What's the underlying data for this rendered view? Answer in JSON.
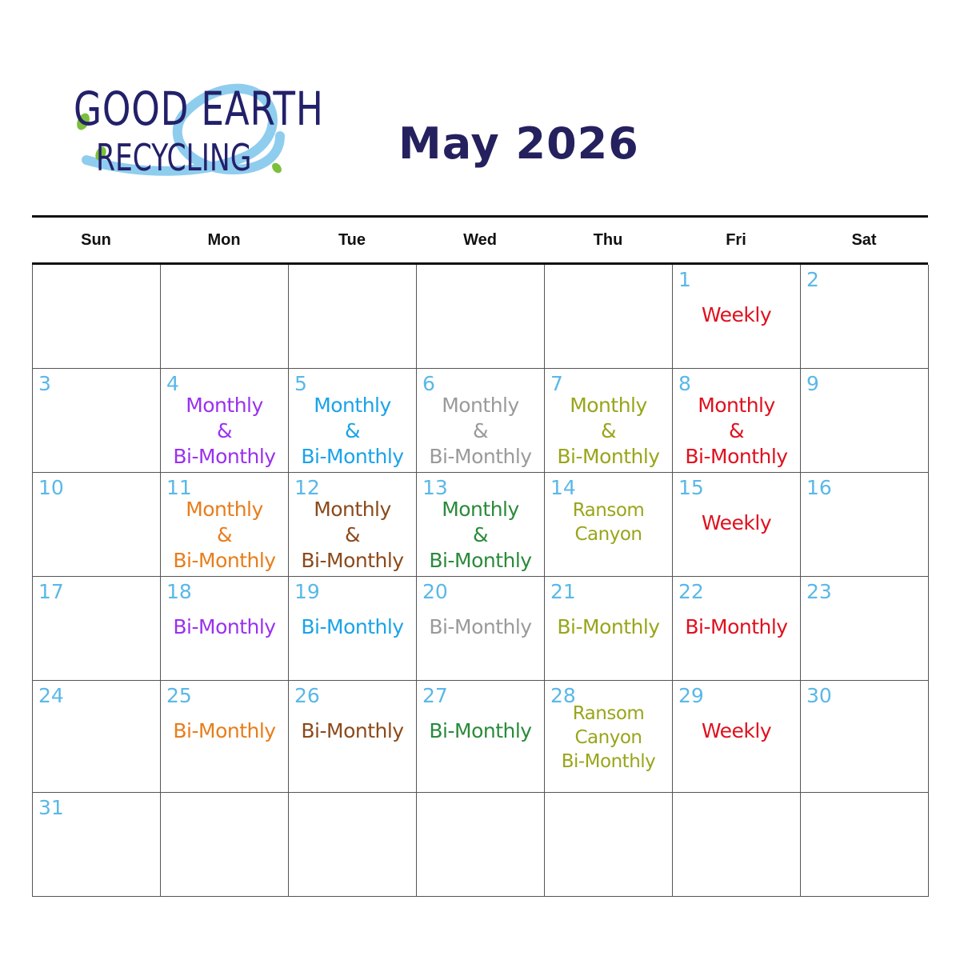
{
  "logo": {
    "line1": "GOOD EARTH",
    "line2": "RECYCLING"
  },
  "title": "May 2026",
  "days": [
    "Sun",
    "Mon",
    "Tue",
    "Wed",
    "Thu",
    "Fri",
    "Sat"
  ],
  "colors": {
    "day_number": "#5ab8e8",
    "purple": "#9b30f0",
    "blue": "#1aa3e8",
    "gray": "#9a9a9a",
    "olive": "#9aa51a",
    "red": "#e0101e",
    "orange": "#e87d1a",
    "brown": "#8b4a1a",
    "green": "#2a8a3a"
  },
  "weeks": [
    [
      {
        "day": ""
      },
      {
        "day": ""
      },
      {
        "day": ""
      },
      {
        "day": ""
      },
      {
        "day": ""
      },
      {
        "day": "1",
        "lines": [
          "Weekly"
        ],
        "color": "#e0101e"
      },
      {
        "day": "2"
      }
    ],
    [
      {
        "day": "3"
      },
      {
        "day": "4",
        "lines": [
          "Monthly",
          "&",
          "Bi-Monthly"
        ],
        "color": "#9b30f0"
      },
      {
        "day": "5",
        "lines": [
          "Monthly",
          "&",
          "Bi-Monthly"
        ],
        "color": "#1aa3e8"
      },
      {
        "day": "6",
        "lines": [
          "Monthly",
          "&",
          "Bi-Monthly"
        ],
        "color": "#9a9a9a"
      },
      {
        "day": "7",
        "lines": [
          "Monthly",
          "&",
          "Bi-Monthly"
        ],
        "color": "#9aa51a"
      },
      {
        "day": "8",
        "lines": [
          "Monthly",
          "&",
          "Bi-Monthly"
        ],
        "color": "#e0101e"
      },
      {
        "day": "9"
      }
    ],
    [
      {
        "day": "10"
      },
      {
        "day": "11",
        "lines": [
          "Monthly",
          "&",
          "Bi-Monthly"
        ],
        "color": "#e87d1a"
      },
      {
        "day": "12",
        "lines": [
          "Monthly",
          "&",
          "Bi-Monthly"
        ],
        "color": "#8b4a1a"
      },
      {
        "day": "13",
        "lines": [
          "Monthly",
          "&",
          "Bi-Monthly"
        ],
        "color": "#2a8a3a"
      },
      {
        "day": "14",
        "lines": [
          "Ransom",
          "Canyon"
        ],
        "color": "#9aa51a"
      },
      {
        "day": "15",
        "lines": [
          "Weekly"
        ],
        "color": "#e0101e"
      },
      {
        "day": "16"
      }
    ],
    [
      {
        "day": "17"
      },
      {
        "day": "18",
        "lines": [
          "Bi-Monthly"
        ],
        "color": "#9b30f0"
      },
      {
        "day": "19",
        "lines": [
          "Bi-Monthly"
        ],
        "color": "#1aa3e8"
      },
      {
        "day": "20",
        "lines": [
          "Bi-Monthly"
        ],
        "color": "#9a9a9a"
      },
      {
        "day": "21",
        "lines": [
          "Bi-Monthly"
        ],
        "color": "#9aa51a"
      },
      {
        "day": "22",
        "lines": [
          "Bi-Monthly"
        ],
        "color": "#e0101e"
      },
      {
        "day": "23"
      }
    ],
    [
      {
        "day": "24"
      },
      {
        "day": "25",
        "lines": [
          "Bi-Monthly"
        ],
        "color": "#e87d1a"
      },
      {
        "day": "26",
        "lines": [
          "Bi-Monthly"
        ],
        "color": "#8b4a1a"
      },
      {
        "day": "27",
        "lines": [
          "Bi-Monthly"
        ],
        "color": "#2a8a3a"
      },
      {
        "day": "28",
        "lines": [
          "Ransom",
          "Canyon",
          "Bi-Monthly"
        ],
        "color": "#9aa51a"
      },
      {
        "day": "29",
        "lines": [
          "Weekly"
        ],
        "color": "#e0101e"
      },
      {
        "day": "30"
      }
    ],
    [
      {
        "day": "31"
      },
      {
        "day": ""
      },
      {
        "day": ""
      },
      {
        "day": ""
      },
      {
        "day": ""
      },
      {
        "day": ""
      },
      {
        "day": ""
      }
    ]
  ]
}
